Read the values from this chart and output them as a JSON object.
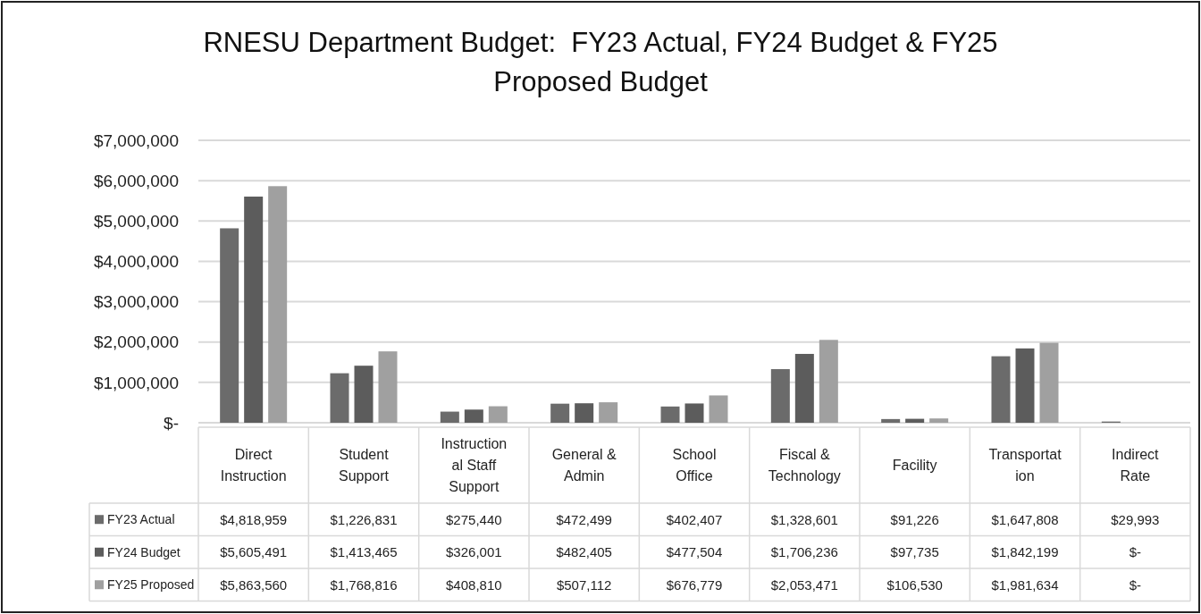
{
  "chart_data": {
    "type": "bar",
    "title": "RNESU Department Budget:  FY23 Actual, FY24 Budget & FY25 Proposed Budget",
    "categories": [
      "Direct Instruction",
      "Student Support",
      "Instructional Staff Support",
      "General & Admin",
      "School Office",
      "Fiscal & Technology",
      "Facility",
      "Transportation",
      "Indirect Rate"
    ],
    "series": [
      {
        "name": "FY23 Actual",
        "color": "#6b6b6b",
        "values": [
          4818959,
          1226831,
          275440,
          472499,
          402407,
          1328601,
          91226,
          1647808,
          29993
        ],
        "value_labels": [
          "$4,818,959",
          "$1,226,831",
          "$275,440",
          "$472,499",
          "$402,407",
          "$1,328,601",
          "$91,226",
          "$1,647,808",
          "$29,993"
        ]
      },
      {
        "name": "FY24 Budget",
        "color": "#5c5c5c",
        "values": [
          5605491,
          1413465,
          326001,
          482405,
          477504,
          1706236,
          97735,
          1842199,
          0
        ],
        "value_labels": [
          "$5,605,491",
          "$1,413,465",
          "$326,001",
          "$482,405",
          "$477,504",
          "$1,706,236",
          "$97,735",
          "$1,842,199",
          "$-"
        ]
      },
      {
        "name": "FY25 Proposed",
        "color": "#a0a0a0",
        "values": [
          5863560,
          1768816,
          408810,
          507112,
          676779,
          2053471,
          106530,
          1981634,
          0
        ],
        "value_labels": [
          "$5,863,560",
          "$1,768,816",
          "$408,810",
          "$507,112",
          "$676,779",
          "$2,053,471",
          "$106,530",
          "$1,981,634",
          "$-"
        ]
      }
    ],
    "ylim": [
      0,
      7000000
    ],
    "yticks": [
      {
        "value": 0,
        "label": "$-"
      },
      {
        "value": 1000000,
        "label": "$1,000,000"
      },
      {
        "value": 2000000,
        "label": "$2,000,000"
      },
      {
        "value": 3000000,
        "label": "$3,000,000"
      },
      {
        "value": 4000000,
        "label": "$4,000,000"
      },
      {
        "value": 5000000,
        "label": "$5,000,000"
      },
      {
        "value": 6000000,
        "label": "$6,000,000"
      },
      {
        "value": 7000000,
        "label": "$7,000,000"
      }
    ],
    "grid": "y",
    "legend": "bottom"
  }
}
